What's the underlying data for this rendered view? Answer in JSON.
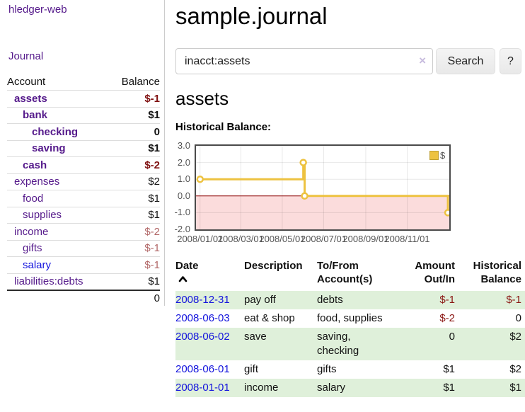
{
  "brand": "hledger-web",
  "nav": {
    "journal": "Journal"
  },
  "sidebar": {
    "headers": {
      "account": "Account",
      "balance": "Balance"
    },
    "rows": [
      {
        "name": "assets",
        "balance": "$-1"
      },
      {
        "name": "bank",
        "balance": "$1"
      },
      {
        "name": "checking",
        "balance": "0"
      },
      {
        "name": "saving",
        "balance": "$1"
      },
      {
        "name": "cash",
        "balance": "$-2"
      },
      {
        "name": "expenses",
        "balance": "$2"
      },
      {
        "name": "food",
        "balance": "$1"
      },
      {
        "name": "supplies",
        "balance": "$1"
      },
      {
        "name": "income",
        "balance": "$-2"
      },
      {
        "name": "gifts",
        "balance": "$-1"
      },
      {
        "name": "salary",
        "balance": "$-1"
      },
      {
        "name": "liabilities:debts",
        "balance": "$1"
      }
    ],
    "total": "0"
  },
  "header": {
    "title": "sample.journal"
  },
  "search": {
    "value": "inacct:assets",
    "clear": "×",
    "button": "Search",
    "help": "?"
  },
  "account": {
    "heading": "assets",
    "chart_label": "Historical Balance:"
  },
  "chart_data": {
    "type": "line",
    "step": true,
    "title": "Historical Balance:",
    "series": [
      {
        "name": "$",
        "x": [
          "2008-01-01",
          "2008-06-01",
          "2008-06-03",
          "2008-12-31"
        ],
        "values": [
          1,
          2,
          0,
          -1
        ]
      }
    ],
    "x_ticks": [
      "2008/01/01",
      "2008/03/01",
      "2008/05/01",
      "2008/07/01",
      "2008/09/01",
      "2008/11/01"
    ],
    "y_ticks": [
      "3.0",
      "2.0",
      "1.0",
      "0.0",
      "-1.0",
      "-2.0"
    ],
    "ylim": [
      -2,
      3
    ],
    "x_range": [
      "2007-12-26",
      "2009-01-02"
    ],
    "grid": true,
    "legend": {
      "label": "$",
      "position": "top-right"
    },
    "colors": {
      "line": "#edc240",
      "marker_fill": "#ffffff",
      "zero_line": "#8b0000",
      "negative_region": "#fbdcdc",
      "grid": "rgba(0,0,0,0.09)"
    }
  },
  "register": {
    "headers": {
      "date": "Date",
      "description": "Description",
      "tofrom1": "To/From",
      "tofrom2": "Account(s)",
      "amount1": "Amount",
      "amount2": "Out/In",
      "balance1": "Historical",
      "balance2": "Balance"
    },
    "rows": [
      {
        "date": "2008-12-31",
        "description": "pay off",
        "accounts1": "debts",
        "accounts2": "",
        "amount": "$-1",
        "balance": "$-1"
      },
      {
        "date": "2008-06-03",
        "description": "eat & shop",
        "accounts1": "food, supplies",
        "accounts2": "",
        "amount": "$-2",
        "balance": "0"
      },
      {
        "date": "2008-06-02",
        "description": "save",
        "accounts1": "saving,",
        "accounts2": "checking",
        "amount": "0",
        "balance": "$2"
      },
      {
        "date": "2008-06-01",
        "description": "gift",
        "accounts1": "gifts",
        "accounts2": "",
        "amount": "$1",
        "balance": "$2"
      },
      {
        "date": "2008-01-01",
        "description": "income",
        "accounts1": "salary",
        "accounts2": "",
        "amount": "$1",
        "balance": "$1"
      }
    ]
  }
}
